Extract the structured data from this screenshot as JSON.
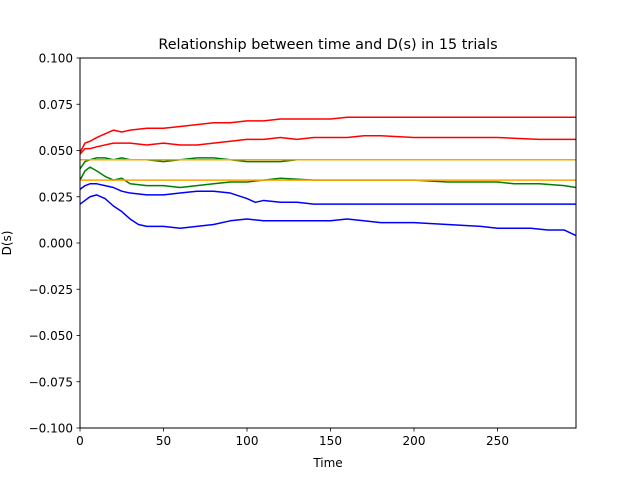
{
  "chart_data": {
    "type": "line",
    "title": "Relationship between time and D(s) in 15 trials",
    "xlabel": "Time",
    "ylabel": "D(s)",
    "xlim": [
      0,
      297
    ],
    "ylim": [
      -0.1,
      0.1
    ],
    "xticks": [
      0,
      50,
      100,
      150,
      200,
      250
    ],
    "xtick_labels": [
      "0",
      "50",
      "100",
      "150",
      "200",
      "250"
    ],
    "yticks": [
      -0.1,
      -0.075,
      -0.05,
      -0.025,
      0.0,
      0.025,
      0.05,
      0.075,
      0.1
    ],
    "ytick_labels": [
      "−0.100",
      "−0.075",
      "−0.050",
      "−0.025",
      "0.000",
      "0.025",
      "0.050",
      "0.075",
      "0.100"
    ],
    "grid": false,
    "legend": false,
    "series": [
      {
        "color": "#ff0000",
        "x": [
          0,
          3,
          6,
          10,
          15,
          20,
          25,
          30,
          40,
          50,
          60,
          70,
          80,
          90,
          100,
          110,
          120,
          130,
          140,
          150,
          160,
          165,
          170,
          180,
          200,
          220,
          250,
          275,
          297
        ],
        "y": [
          0.049,
          0.054,
          0.055,
          0.057,
          0.059,
          0.061,
          0.06,
          0.061,
          0.062,
          0.062,
          0.063,
          0.064,
          0.065,
          0.065,
          0.066,
          0.066,
          0.067,
          0.067,
          0.067,
          0.067,
          0.068,
          0.068,
          0.068,
          0.068,
          0.068,
          0.068,
          0.068,
          0.068,
          0.068
        ]
      },
      {
        "color": "#ff0000",
        "x": [
          0,
          3,
          6,
          10,
          20,
          30,
          40,
          50,
          60,
          70,
          80,
          90,
          100,
          110,
          120,
          130,
          140,
          150,
          160,
          170,
          180,
          200,
          220,
          250,
          275,
          297
        ],
        "y": [
          0.048,
          0.051,
          0.051,
          0.052,
          0.054,
          0.054,
          0.053,
          0.054,
          0.053,
          0.053,
          0.054,
          0.055,
          0.056,
          0.056,
          0.057,
          0.056,
          0.057,
          0.057,
          0.057,
          0.058,
          0.058,
          0.057,
          0.057,
          0.057,
          0.056,
          0.056
        ]
      },
      {
        "color": "#008000",
        "x": [
          0,
          3,
          6,
          10,
          15,
          20,
          25,
          30,
          40,
          50,
          60,
          70,
          80,
          90,
          100,
          110,
          120,
          130,
          140,
          150,
          160,
          170,
          180,
          200,
          220,
          250,
          275,
          297
        ],
        "y": [
          0.04,
          0.044,
          0.045,
          0.046,
          0.046,
          0.045,
          0.046,
          0.045,
          0.045,
          0.044,
          0.045,
          0.046,
          0.046,
          0.045,
          0.044,
          0.044,
          0.044,
          0.045,
          0.045,
          0.045,
          0.045,
          0.045,
          0.045,
          0.045,
          0.045,
          0.045,
          0.045,
          0.045
        ]
      },
      {
        "color": "#008000",
        "x": [
          0,
          3,
          6,
          10,
          15,
          20,
          25,
          30,
          40,
          50,
          60,
          70,
          80,
          90,
          100,
          110,
          120,
          140,
          160,
          180,
          200,
          220,
          240,
          250,
          260,
          275,
          290,
          297
        ],
        "y": [
          0.034,
          0.039,
          0.041,
          0.039,
          0.036,
          0.034,
          0.035,
          0.032,
          0.031,
          0.031,
          0.03,
          0.031,
          0.032,
          0.033,
          0.033,
          0.034,
          0.035,
          0.034,
          0.034,
          0.034,
          0.034,
          0.033,
          0.033,
          0.033,
          0.032,
          0.032,
          0.031,
          0.03
        ]
      },
      {
        "color": "#0000ff",
        "x": [
          0,
          3,
          6,
          10,
          15,
          20,
          25,
          30,
          40,
          50,
          60,
          70,
          80,
          90,
          100,
          105,
          110,
          120,
          130,
          140,
          150,
          160,
          170,
          200,
          250,
          297
        ],
        "y": [
          0.029,
          0.031,
          0.032,
          0.032,
          0.031,
          0.03,
          0.028,
          0.027,
          0.026,
          0.026,
          0.027,
          0.028,
          0.028,
          0.027,
          0.024,
          0.022,
          0.023,
          0.022,
          0.022,
          0.021,
          0.021,
          0.021,
          0.021,
          0.021,
          0.021,
          0.021
        ]
      },
      {
        "color": "#0000ff",
        "x": [
          0,
          3,
          6,
          10,
          15,
          20,
          25,
          30,
          35,
          40,
          50,
          60,
          70,
          80,
          90,
          100,
          110,
          120,
          130,
          140,
          150,
          160,
          170,
          180,
          200,
          220,
          240,
          250,
          260,
          270,
          280,
          290,
          297
        ],
        "y": [
          0.021,
          0.023,
          0.025,
          0.026,
          0.024,
          0.02,
          0.017,
          0.013,
          0.01,
          0.009,
          0.009,
          0.008,
          0.009,
          0.01,
          0.012,
          0.013,
          0.012,
          0.012,
          0.012,
          0.012,
          0.012,
          0.013,
          0.012,
          0.011,
          0.011,
          0.01,
          0.009,
          0.008,
          0.008,
          0.008,
          0.007,
          0.007,
          0.004
        ]
      },
      {
        "color": "#ffa500",
        "x": [
          0,
          297
        ],
        "y": [
          0.045,
          0.045
        ]
      },
      {
        "color": "#ffa500",
        "x": [
          0,
          297
        ],
        "y": [
          0.034,
          0.034
        ]
      }
    ]
  }
}
